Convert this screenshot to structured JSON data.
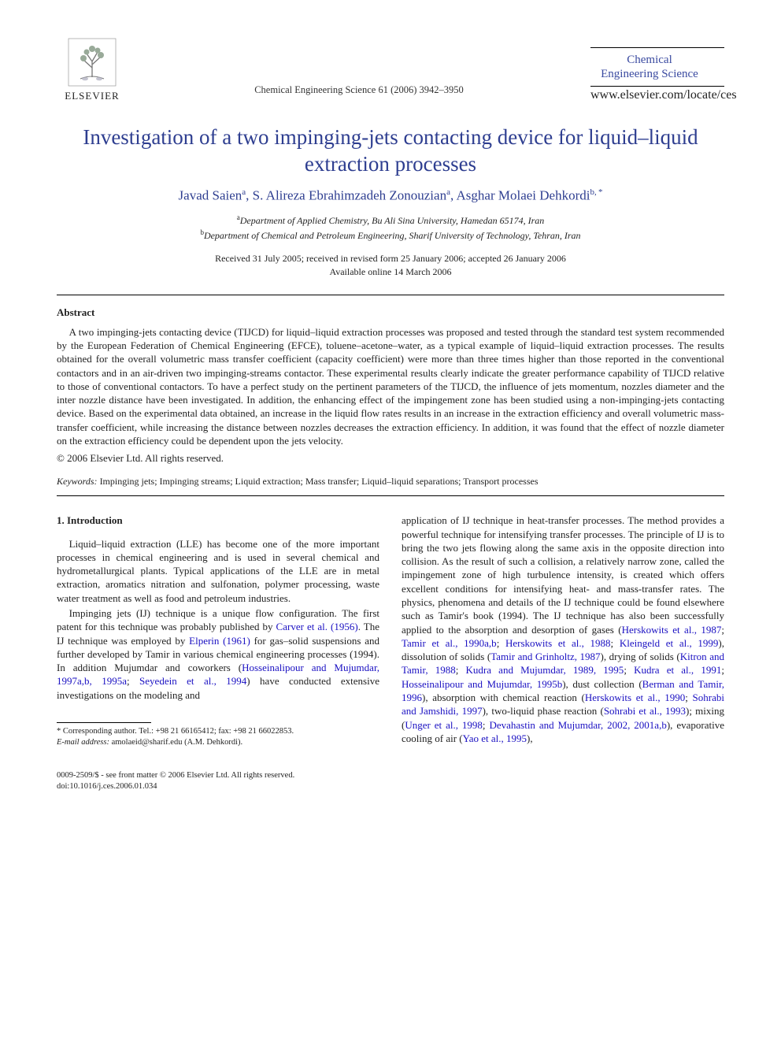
{
  "publisher": "ELSEVIER",
  "running_head": "Chemical Engineering Science 61 (2006) 3942–3950",
  "journal_name": "Chemical\nEngineering Science",
  "journal_link": "www.elsevier.com/locate/ces",
  "title": "Investigation of a two impinging-jets contacting device for liquid–liquid extraction processes",
  "authors_html": "Javad Saien<sup>a</sup>, S. Alireza Ebrahimzadeh Zonouzian<sup>a</sup>, Asghar Molaei Dehkordi<sup>b,&#8201;*</sup>",
  "affiliations": [
    {
      "sup": "a",
      "text": "Department of Applied Chemistry, Bu Ali Sina University, Hamedan 65174, Iran"
    },
    {
      "sup": "b",
      "text": "Department of Chemical and Petroleum Engineering, Sharif University of Technology, Tehran, Iran"
    }
  ],
  "dates_line1": "Received 31 July 2005; received in revised form 25 January 2006; accepted 26 January 2006",
  "dates_line2": "Available online 14 March 2006",
  "abstract_label": "Abstract",
  "abstract_text": "A two impinging-jets contacting device (TIJCD) for liquid–liquid extraction processes was proposed and tested through the standard test system recommended by the European Federation of Chemical Engineering (EFCE), toluene–acetone–water, as a typical example of liquid–liquid extraction processes. The results obtained for the overall volumetric mass transfer coefficient (capacity coefficient) were more than three times higher than those reported in the conventional contactors and in an air-driven two impinging-streams contactor. These experimental results clearly indicate the greater performance capability of TIJCD relative to those of conventional contactors. To have a perfect study on the pertinent parameters of the TIJCD, the influence of jets momentum, nozzles diameter and the inter nozzle distance have been investigated. In addition, the enhancing effect of the impingement zone has been studied using a non-impinging-jets contacting device. Based on the experimental data obtained, an increase in the liquid flow rates results in an increase in the extraction efficiency and overall volumetric mass-transfer coefficient, while increasing the distance between nozzles decreases the extraction efficiency. In addition, it was found that the effect of nozzle diameter on the extraction efficiency could be dependent upon the jets velocity.",
  "copyright": "© 2006 Elsevier Ltd. All rights reserved.",
  "keywords_label": "Keywords:",
  "keywords_text": " Impinging jets; Impinging streams; Liquid extraction; Mass transfer; Liquid–liquid separations; Transport processes",
  "section1_head": "1. Introduction",
  "col1_p1": "Liquid–liquid extraction (LLE) has become one of the more important processes in chemical engineering and is used in several chemical and hydrometallurgical plants. Typical applications of the LLE are in metal extraction, aromatics nitration and sulfonation, polymer processing, waste water treatment as well as food and petroleum industries.",
  "col1_p2_pre": "Impinging jets (IJ) technique is a unique flow configuration. The first patent for this technique was probably published by ",
  "col1_p2_c1": "Carver et al. (1956)",
  "col1_p2_mid1": ". The IJ technique was employed by ",
  "col1_p2_c2": "Elperin (1961)",
  "col1_p2_mid2": " for gas–solid suspensions and further developed by Tamir in various chemical engineering processes (1994). In addition Mujumdar and coworkers (",
  "col1_p2_c3": "Hosseinalipour and Mujumdar, 1997a,b, 1995a",
  "col1_p2_mid3": "; ",
  "col1_p2_c4": "Seyedein et al., 1994",
  "col1_p2_end": ") have conducted extensive investigations on the modeling and",
  "col2_pre": "application of IJ technique in heat-transfer processes. The method provides a powerful technique for intensifying transfer processes. The principle of IJ is to bring the two jets flowing along the same axis in the opposite direction into collision. As the result of such a collision, a relatively narrow zone, called the impingement zone of high turbulence intensity, is created which offers excellent conditions for intensifying heat- and mass-transfer rates. The physics, phenomena and details of the IJ technique could be found elsewhere such as Tamir's book (1994). The IJ technique has also been successfully applied to the absorption and desorption of gases (",
  "col2_c1": "Herskowits et al., 1987",
  "col2_s1": "; ",
  "col2_c2": "Tamir et al., 1990a,b",
  "col2_s2": "; ",
  "col2_c3": "Herskowits et al., 1988",
  "col2_s3": "; ",
  "col2_c4": "Kleingeld et al., 1999",
  "col2_mid1": "), dissolution of solids (",
  "col2_c5": "Tamir and Grinholtz, 1987",
  "col2_mid2": "), drying of solids (",
  "col2_c6": "Kitron and Tamir, 1988",
  "col2_s6": "; ",
  "col2_c7": "Kudra and Mujumdar, 1989, 1995",
  "col2_s7": "; ",
  "col2_c8": "Kudra et al., 1991",
  "col2_s8": "; ",
  "col2_c9": "Hosseinalipour and Mujumdar, 1995b",
  "col2_mid3": "), dust collection (",
  "col2_c10": "Berman and Tamir, 1996",
  "col2_mid4": "), absorption with chemical reaction (",
  "col2_c11": "Herskowits et al., 1990",
  "col2_s11": "; ",
  "col2_c12": "Sohrabi and Jamshidi, 1997",
  "col2_mid5": "), two-liquid phase reaction (",
  "col2_c13": "Sohrabi et al., 1993",
  "col2_mid6": "); mixing (",
  "col2_c14": "Unger et al., 1998",
  "col2_s14": "; ",
  "col2_c15": "Devahastin and Mujumdar, 2002, 2001a,b",
  "col2_mid7": "), evaporative cooling of air (",
  "col2_c16": "Yao et al., 1995",
  "col2_end": "),",
  "footnote_corr": "* Corresponding author. Tel.: +98 21 66165412; fax: +98 21 66022853.",
  "footnote_email_label": "E-mail address:",
  "footnote_email": " amolaeid@sharif.edu (A.M. Dehkordi).",
  "issn_line": "0009-2509/$ - see front matter © 2006 Elsevier Ltd. All rights reserved.",
  "doi_line": "doi:10.1016/j.ces.2006.01.034",
  "colors": {
    "heading_blue": "#2e3e90",
    "link_blue": "#1a10c2",
    "text": "#222222",
    "background": "#ffffff"
  }
}
